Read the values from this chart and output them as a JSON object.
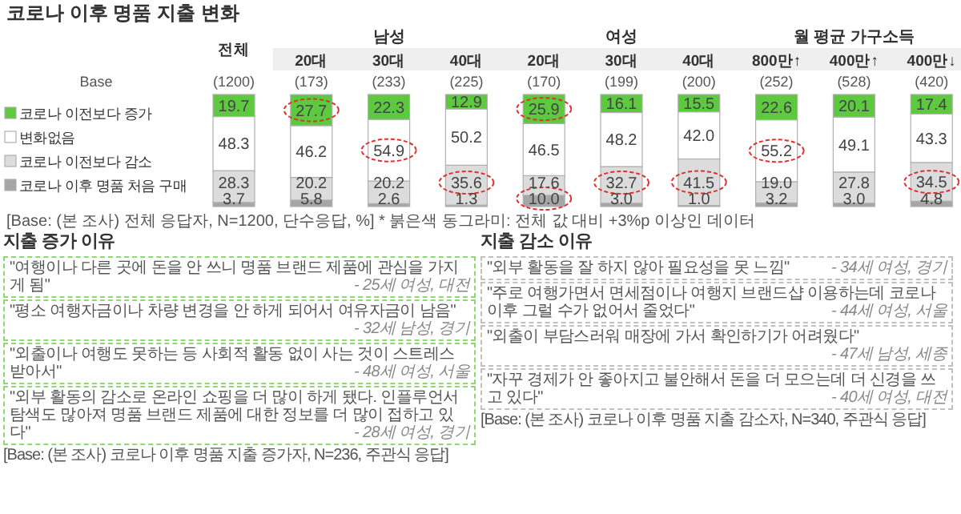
{
  "chart_data": {
    "type": "bar",
    "stacked": true,
    "legend": "left",
    "title": "코로나 이후 명품 지출 변화",
    "categories": [
      "전체",
      "20대",
      "30대",
      "40대",
      "20대",
      "30대",
      "40대",
      "800만↑",
      "400만↑",
      "400만↓"
    ],
    "series": [
      {
        "name": "코로나 이후 명품 처음 구매",
        "color": "#a6a6a6",
        "values": [
          3.7,
          5.8,
          2.6,
          1.3,
          10.0,
          3.0,
          1.0,
          3.2,
          3.0,
          4.8
        ],
        "value_labels": [
          "3.7",
          "5.8",
          "2.6",
          "1.3",
          "10.0",
          "3.0",
          "1.0",
          "3.2",
          "3.0",
          "4.8"
        ]
      },
      {
        "name": "코로나 이전보다 감소",
        "color": "#dcdcdc",
        "values": [
          28.3,
          20.2,
          20.2,
          35.6,
          17.6,
          32.7,
          41.5,
          19.0,
          27.8,
          34.5
        ],
        "value_labels": [
          "28.3",
          "20.2",
          "20.2",
          "35.6",
          "17.6",
          "32.7",
          "41.5",
          "19.0",
          "27.8",
          "34.5"
        ]
      },
      {
        "name": "변화없음",
        "color": "#ffffff",
        "values": [
          48.3,
          46.2,
          54.9,
          50.2,
          46.5,
          48.2,
          42.0,
          55.2,
          49.1,
          43.3
        ],
        "value_labels": [
          "48.3",
          "46.2",
          "54.9",
          "50.2",
          "46.5",
          "48.2",
          "42.0",
          "55.2",
          "49.1",
          "43.3"
        ]
      },
      {
        "name": "코로나 이전보다 증가",
        "color": "#5cc93f",
        "values": [
          19.7,
          27.7,
          22.3,
          12.9,
          25.9,
          16.1,
          15.5,
          22.6,
          20.1,
          17.4
        ],
        "value_labels": [
          "19.7",
          "27.7",
          "22.3",
          "12.9",
          "25.9",
          "16.1",
          "15.5",
          "22.6",
          "20.1",
          "17.4"
        ]
      }
    ],
    "annotations": [
      "남성",
      "여성",
      "월 평균 가구소득",
      "Base",
      "(1200)",
      "(173)",
      "(233)",
      "(225)",
      "(170)",
      "(199)",
      "(200)",
      "(252)",
      "(528)",
      "(420)",
      "[Base: (본 조사) 전체 응답자, N=1200, 단수응답, %] * 붉은색 동그라미: 전체 값 대비 +3%p 이상인 데이터",
      "지출 증가 이유",
      "\"여행이나 다른 곳에 돈을 안 쓰니 명품 브랜드 제품에 관심을 가지게 됨\"",
      "- 25세 여성, 대전",
      "\"평소 여행자금이나 차량 변경을 안 하게 되어서 여유자금이 남음\"",
      "- 32세 남성, 경기",
      "\"외출이나 여행도 못하는 등  사회적 활동 없이 사는 것이 스트레스 받아서\"",
      "- 48세 여성, 서울",
      "\"외부 활동의 감소로 온라인 쇼핑을 더 많이 하게 됐다. 인플루언서 탐색도 많아져 명품 브랜드 제품에 대한 정보를 더 많이 접하고 있다\"",
      "- 28세 여성, 경기",
      "[Base: (본 조사) 코로나 이후 명품 지출 증가자, N=236, 주관식 응답]",
      "지출 감소 이유",
      "\"외부 활동을 잘 하지 않아 필요성을 못 느낌\"",
      "- 34세 여성, 경기",
      "\"주로 여행가면서 면세점이나 여행지 브랜드샵 이용하는데 코로나 이후 그럴 수가 없어서 줄었다\"",
      "- 44세 여성, 서울",
      "\"외출이 부담스러워 매장에 가서 확인하기가 어려웠다\"",
      "- 47세 남성, 세종",
      "\"자꾸 경제가 안 좋아지고 불안해서 돈을 더 모으는데 더 신경을 쓰고 있다\"",
      "- 40세 여성, 대전",
      "[Base: (본 조사) 코로나 이후 명품 지출 감소자, N=340, 주관식 응답]"
    ]
  }
}
